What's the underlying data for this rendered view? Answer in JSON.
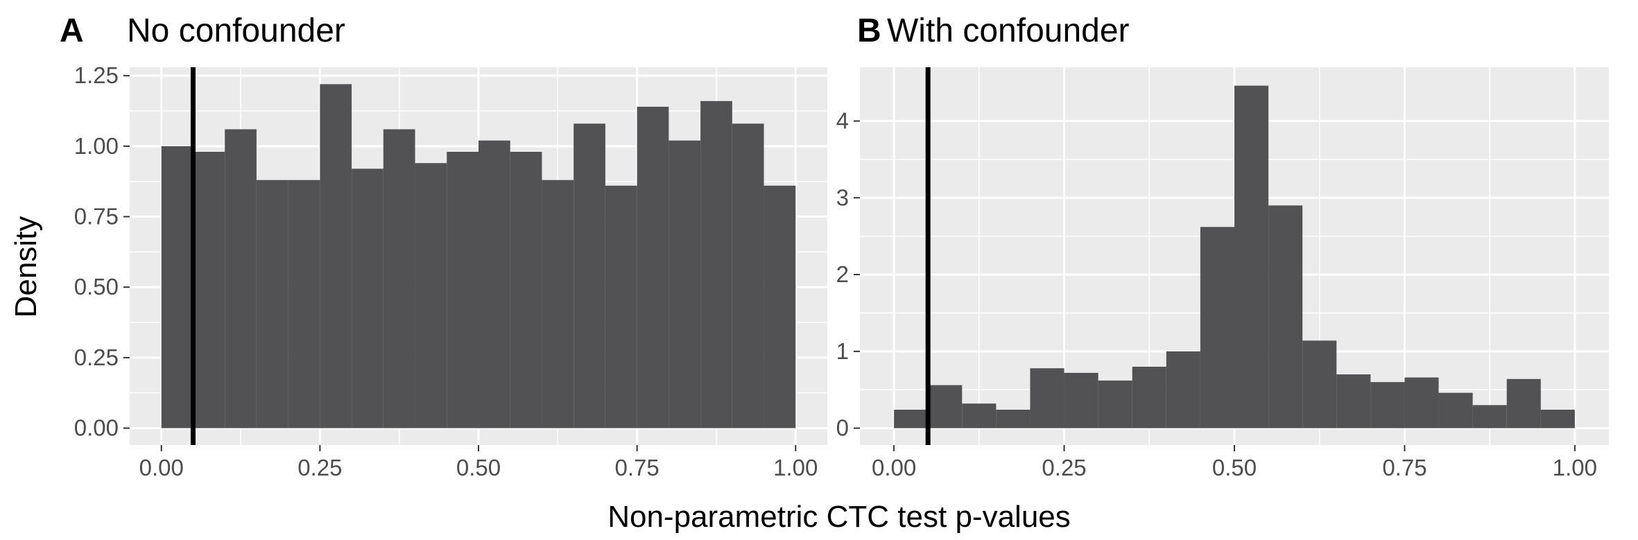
{
  "figure": {
    "xlabel": "Non-parametric CTC test p-values",
    "ylabel": "Density",
    "colors": {
      "panel_bg": "#ebebeb",
      "grid": "#ffffff",
      "bar": "#525153",
      "vline": "#000000",
      "tick_text": "#4d4d4d"
    }
  },
  "chart_data": [
    {
      "type": "bar",
      "tag": "A",
      "title": "No confounder",
      "bin_width": 0.05,
      "bin_starts": [
        0.0,
        0.05,
        0.1,
        0.15,
        0.2,
        0.25,
        0.3,
        0.35,
        0.4,
        0.45,
        0.5,
        0.55,
        0.6,
        0.65,
        0.7,
        0.75,
        0.8,
        0.85,
        0.9,
        0.95
      ],
      "values": [
        1.0,
        0.98,
        1.06,
        0.88,
        0.88,
        1.22,
        0.92,
        1.06,
        0.94,
        0.98,
        1.02,
        0.98,
        0.88,
        1.08,
        0.86,
        1.14,
        1.02,
        1.16,
        1.08,
        0.86
      ],
      "vline": 0.05,
      "xlim": [
        -0.05,
        1.05
      ],
      "ylim": [
        -0.06,
        1.28
      ],
      "x_ticks": [
        0,
        0.25,
        0.5,
        0.75,
        1
      ],
      "x_tick_labels": [
        "0.00",
        "0.25",
        "0.50",
        "0.75",
        "1.00"
      ],
      "y_ticks": [
        0,
        0.25,
        0.5,
        0.75,
        1,
        1.25
      ],
      "y_tick_labels": [
        "0.00",
        "0.25",
        "0.50",
        "0.75",
        "1.00",
        "1.25"
      ],
      "grid": true
    },
    {
      "type": "bar",
      "tag": "B",
      "title": "With confounder",
      "bin_width": 0.05,
      "bin_starts": [
        0.0,
        0.05,
        0.1,
        0.15,
        0.2,
        0.25,
        0.3,
        0.35,
        0.4,
        0.45,
        0.5,
        0.55,
        0.6,
        0.65,
        0.7,
        0.75,
        0.8,
        0.85,
        0.9,
        0.95
      ],
      "values": [
        0.24,
        0.56,
        0.32,
        0.24,
        0.78,
        0.72,
        0.62,
        0.8,
        1.0,
        2.62,
        4.46,
        2.9,
        1.14,
        0.7,
        0.6,
        0.66,
        0.46,
        0.3,
        0.64,
        0.24
      ],
      "vline": 0.05,
      "xlim": [
        -0.05,
        1.05
      ],
      "ylim": [
        -0.22,
        4.7
      ],
      "x_ticks": [
        0,
        0.25,
        0.5,
        0.75,
        1
      ],
      "x_tick_labels": [
        "0.00",
        "0.25",
        "0.50",
        "0.75",
        "1.00"
      ],
      "y_ticks": [
        0,
        1,
        2,
        3,
        4
      ],
      "y_tick_labels": [
        "0",
        "1",
        "2",
        "3",
        "4"
      ],
      "grid": true
    }
  ]
}
